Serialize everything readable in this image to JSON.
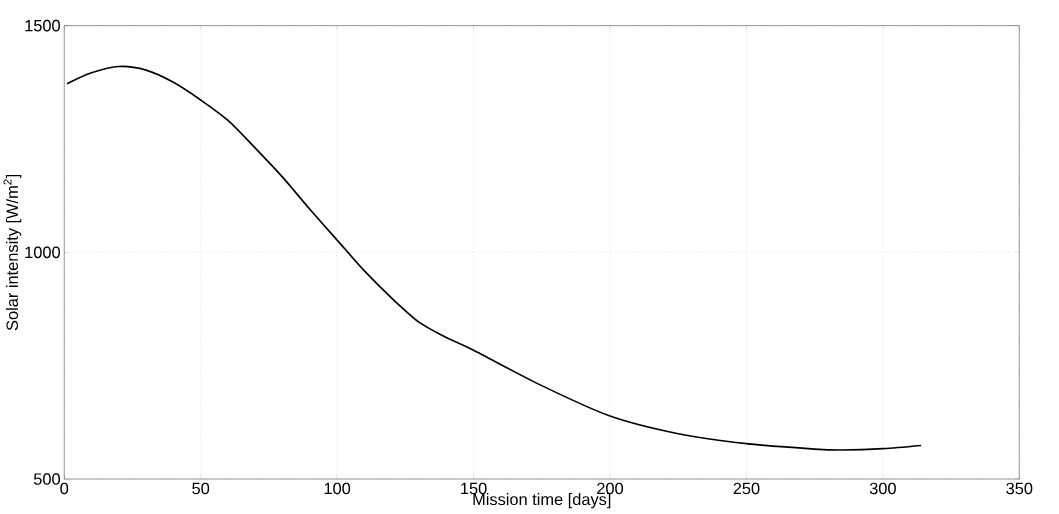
{
  "chart_data": {
    "type": "line",
    "xlabel": "Mission time [days]",
    "ylabel": "Solar intensity [W/m$^{2}$]",
    "x": [
      1,
      10,
      20,
      30,
      40,
      50,
      60,
      70,
      80,
      90,
      100,
      110,
      120,
      130,
      140,
      150,
      175,
      200,
      225,
      250,
      275,
      285,
      300,
      314
    ],
    "series": [
      {
        "color": "#000000",
        "values": [
          1372,
          1396,
          1410,
          1402,
          1375,
          1336,
          1291,
          1230,
          1166,
          1095,
          1027,
          959,
          899,
          846,
          812,
          784,
          706,
          639,
          600,
          578,
          566,
          564,
          567,
          574
        ]
      }
    ],
    "xlim": [
      0,
      350
    ],
    "ylim": [
      500,
      1500
    ],
    "xticks": [
      0,
      50,
      100,
      150,
      200,
      250,
      300,
      350
    ],
    "yticks": [
      500,
      1000,
      1500
    ],
    "grid": true,
    "line_style": "solid",
    "marker": "none"
  }
}
